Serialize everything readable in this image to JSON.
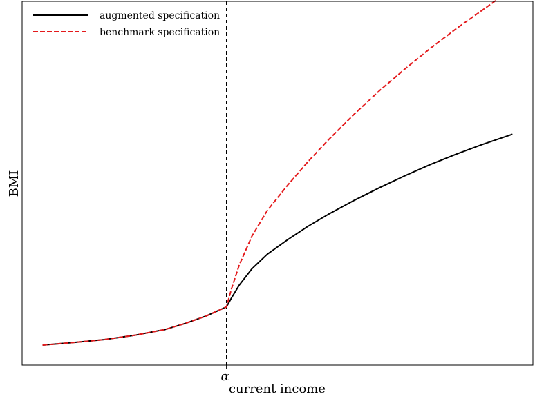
{
  "chart_data": {
    "type": "line",
    "title": "",
    "xlabel": "current income",
    "ylabel": "BMI",
    "xlim": [
      0,
      10
    ],
    "ylim": [
      0,
      10
    ],
    "grid": false,
    "legend_placement": "top-left",
    "x_ticks": [
      {
        "value": 4.0,
        "label": "α"
      }
    ],
    "vline": {
      "x": 4.0,
      "style": "dashed",
      "color": "#000000"
    },
    "x": [
      0.4,
      1.0,
      1.6,
      2.2,
      2.8,
      3.2,
      3.6,
      4.0,
      4.1,
      4.25,
      4.5,
      4.8,
      5.2,
      5.6,
      6.0,
      6.5,
      7.0,
      7.5,
      8.0,
      8.5,
      9.0,
      9.6
    ],
    "series": [
      {
        "name": "augmented specification",
        "color": "#000000",
        "style": "solid",
        "values": [
          0.55,
          0.62,
          0.7,
          0.82,
          0.98,
          1.15,
          1.35,
          1.6,
          1.85,
          2.2,
          2.65,
          3.05,
          3.45,
          3.82,
          4.15,
          4.53,
          4.88,
          5.21,
          5.52,
          5.8,
          6.06,
          6.35
        ]
      },
      {
        "name": "benchmark specification",
        "color": "#e41a1c",
        "style": "dashed",
        "values": [
          0.55,
          0.62,
          0.7,
          0.82,
          0.98,
          1.15,
          1.35,
          1.6,
          2.1,
          2.75,
          3.55,
          4.25,
          4.95,
          5.6,
          6.2,
          6.9,
          7.55,
          8.15,
          8.72,
          9.25,
          9.75,
          10.35
        ]
      }
    ]
  }
}
